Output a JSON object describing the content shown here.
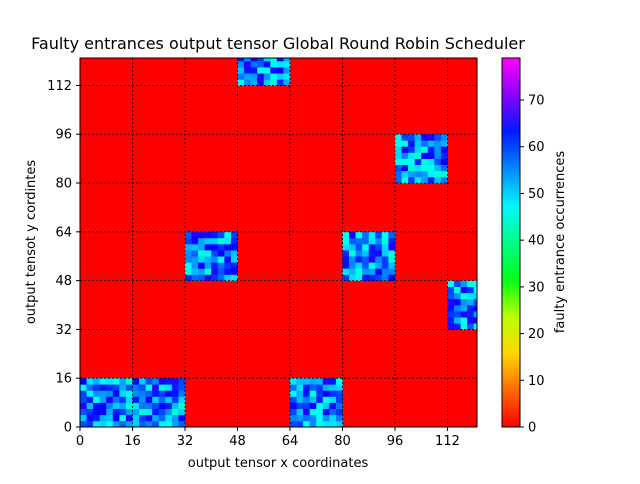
{
  "chart_data": {
    "type": "heatmap",
    "title": "Faulty entrances output tensor Global Round Robin Scheduler",
    "xlabel": "output tensor x coordinates",
    "ylabel": "output tensot y cordintes",
    "xlim": [
      0,
      121
    ],
    "ylim": [
      0,
      121
    ],
    "xticks": [
      0,
      16,
      32,
      48,
      64,
      80,
      96,
      112
    ],
    "yticks": [
      0,
      16,
      32,
      48,
      64,
      80,
      96,
      112
    ],
    "grid": true,
    "background_value": 0,
    "hot_regions": [
      {
        "x": [
          0,
          32
        ],
        "y": [
          0,
          16
        ],
        "min": 44,
        "max": 66
      },
      {
        "x": [
          64,
          80
        ],
        "y": [
          0,
          16
        ],
        "min": 44,
        "max": 66
      },
      {
        "x": [
          32,
          48
        ],
        "y": [
          48,
          64
        ],
        "min": 44,
        "max": 66
      },
      {
        "x": [
          80,
          96
        ],
        "y": [
          48,
          64
        ],
        "min": 44,
        "max": 66
      },
      {
        "x": [
          112,
          121
        ],
        "y": [
          32,
          48
        ],
        "min": 44,
        "max": 66
      },
      {
        "x": [
          96,
          112
        ],
        "y": [
          80,
          96
        ],
        "min": 44,
        "max": 66
      },
      {
        "x": [
          48,
          64
        ],
        "y": [
          112,
          121
        ],
        "min": 44,
        "max": 66
      }
    ],
    "colorbar": {
      "label": "faulty entrance occurrences",
      "colormap": "gist_rainbow",
      "range": [
        0,
        79
      ],
      "ticks": [
        0,
        10,
        20,
        30,
        40,
        50,
        60,
        70
      ]
    }
  }
}
